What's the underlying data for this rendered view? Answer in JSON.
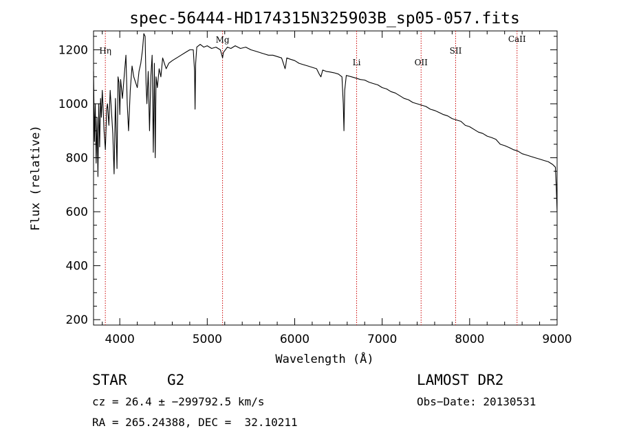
{
  "chart_data": {
    "type": "line",
    "title": "spec-56444-HD174315N325903B_sp05-057.fits",
    "xlabel": "Wavelength (Å)",
    "ylabel": "Flux (relative)",
    "xlim": [
      3700,
      9000
    ],
    "ylim": [
      180,
      1270
    ],
    "x_ticks": [
      4000,
      5000,
      6000,
      7000,
      8000,
      9000
    ],
    "y_ticks": [
      200,
      400,
      600,
      800,
      1000,
      1200
    ],
    "grid": false,
    "line_color": "#000000",
    "marker_color": "#cc0000",
    "spectral_lines": [
      {
        "label": "Hη",
        "x": 3835
      },
      {
        "label": "Mg",
        "x": 5175
      },
      {
        "label": "Li",
        "x": 6708
      },
      {
        "label": "OII",
        "x": 7445
      },
      {
        "label": "SII",
        "x": 7840
      },
      {
        "label": "CaII",
        "x": 8542
      }
    ],
    "series": [
      {
        "values": [
          [
            3700,
            1120
          ],
          [
            3710,
            860
          ],
          [
            3720,
            1000
          ],
          [
            3730,
            780
          ],
          [
            3740,
            950
          ],
          [
            3750,
            730
          ],
          [
            3760,
            1000
          ],
          [
            3770,
            840
          ],
          [
            3780,
            1020
          ],
          [
            3790,
            950
          ],
          [
            3800,
            1050
          ],
          [
            3810,
            980
          ],
          [
            3820,
            900
          ],
          [
            3835,
            830
          ],
          [
            3850,
            980
          ],
          [
            3860,
            1000
          ],
          [
            3875,
            920
          ],
          [
            3890,
            1050
          ],
          [
            3900,
            1000
          ],
          [
            3920,
            890
          ],
          [
            3935,
            740
          ],
          [
            3950,
            1020
          ],
          [
            3968,
            760
          ],
          [
            3980,
            1100
          ],
          [
            3990,
            1080
          ],
          [
            4000,
            960
          ],
          [
            4010,
            1090
          ],
          [
            4030,
            1020
          ],
          [
            4050,
            1100
          ],
          [
            4070,
            1180
          ],
          [
            4085,
            1000
          ],
          [
            4100,
            900
          ],
          [
            4120,
            1050
          ],
          [
            4140,
            1140
          ],
          [
            4160,
            1100
          ],
          [
            4180,
            1080
          ],
          [
            4200,
            1060
          ],
          [
            4220,
            1120
          ],
          [
            4240,
            1150
          ],
          [
            4260,
            1200
          ],
          [
            4275,
            1260
          ],
          [
            4290,
            1250
          ],
          [
            4300,
            1080
          ],
          [
            4310,
            1000
          ],
          [
            4325,
            1120
          ],
          [
            4340,
            900
          ],
          [
            4355,
            1100
          ],
          [
            4370,
            1180
          ],
          [
            4383,
            820
          ],
          [
            4395,
            1150
          ],
          [
            4405,
            800
          ],
          [
            4415,
            1100
          ],
          [
            4430,
            1060
          ],
          [
            4450,
            1130
          ],
          [
            4470,
            1100
          ],
          [
            4490,
            1170
          ],
          [
            4510,
            1150
          ],
          [
            4530,
            1130
          ],
          [
            4560,
            1150
          ],
          [
            4600,
            1160
          ],
          [
            4650,
            1170
          ],
          [
            4700,
            1180
          ],
          [
            4750,
            1190
          ],
          [
            4800,
            1200
          ],
          [
            4840,
            1200
          ],
          [
            4855,
            1120
          ],
          [
            4861,
            980
          ],
          [
            4868,
            1150
          ],
          [
            4880,
            1210
          ],
          [
            4920,
            1220
          ],
          [
            4960,
            1210
          ],
          [
            5000,
            1215
          ],
          [
            5050,
            1205
          ],
          [
            5100,
            1210
          ],
          [
            5150,
            1200
          ],
          [
            5167,
            1180
          ],
          [
            5175,
            1170
          ],
          [
            5185,
            1190
          ],
          [
            5230,
            1210
          ],
          [
            5270,
            1205
          ],
          [
            5320,
            1215
          ],
          [
            5380,
            1205
          ],
          [
            5440,
            1210
          ],
          [
            5500,
            1200
          ],
          [
            5550,
            1195
          ],
          [
            5600,
            1190
          ],
          [
            5650,
            1185
          ],
          [
            5700,
            1180
          ],
          [
            5750,
            1180
          ],
          [
            5800,
            1175
          ],
          [
            5850,
            1170
          ],
          [
            5870,
            1150
          ],
          [
            5890,
            1130
          ],
          [
            5896,
            1140
          ],
          [
            5910,
            1170
          ],
          [
            5950,
            1165
          ],
          [
            6000,
            1160
          ],
          [
            6050,
            1150
          ],
          [
            6100,
            1145
          ],
          [
            6150,
            1140
          ],
          [
            6200,
            1135
          ],
          [
            6250,
            1130
          ],
          [
            6280,
            1110
          ],
          [
            6300,
            1100
          ],
          [
            6320,
            1125
          ],
          [
            6360,
            1120
          ],
          [
            6400,
            1118
          ],
          [
            6450,
            1115
          ],
          [
            6500,
            1110
          ],
          [
            6540,
            1100
          ],
          [
            6555,
            1000
          ],
          [
            6563,
            900
          ],
          [
            6572,
            1050
          ],
          [
            6590,
            1105
          ],
          [
            6650,
            1100
          ],
          [
            6700,
            1095
          ],
          [
            6750,
            1090
          ],
          [
            6800,
            1088
          ],
          [
            6850,
            1080
          ],
          [
            6900,
            1075
          ],
          [
            6950,
            1070
          ],
          [
            7000,
            1060
          ],
          [
            7050,
            1055
          ],
          [
            7100,
            1045
          ],
          [
            7150,
            1040
          ],
          [
            7200,
            1030
          ],
          [
            7250,
            1020
          ],
          [
            7300,
            1015
          ],
          [
            7350,
            1005
          ],
          [
            7400,
            1000
          ],
          [
            7450,
            995
          ],
          [
            7500,
            990
          ],
          [
            7550,
            980
          ],
          [
            7600,
            975
          ],
          [
            7650,
            968
          ],
          [
            7700,
            960
          ],
          [
            7750,
            955
          ],
          [
            7800,
            945
          ],
          [
            7850,
            940
          ],
          [
            7900,
            935
          ],
          [
            7950,
            920
          ],
          [
            8000,
            915
          ],
          [
            8050,
            905
          ],
          [
            8100,
            895
          ],
          [
            8150,
            890
          ],
          [
            8200,
            880
          ],
          [
            8250,
            875
          ],
          [
            8300,
            868
          ],
          [
            8350,
            850
          ],
          [
            8400,
            845
          ],
          [
            8450,
            838
          ],
          [
            8500,
            830
          ],
          [
            8550,
            825
          ],
          [
            8600,
            815
          ],
          [
            8650,
            810
          ],
          [
            8700,
            805
          ],
          [
            8750,
            800
          ],
          [
            8800,
            795
          ],
          [
            8850,
            790
          ],
          [
            8900,
            785
          ],
          [
            8950,
            775
          ],
          [
            8980,
            765
          ],
          [
            8990,
            700
          ],
          [
            9000,
            600
          ]
        ]
      }
    ]
  },
  "info": {
    "object_class": "STAR",
    "subclass": "G2",
    "survey": "LAMOST DR2",
    "cz": "cz = 26.4 ± −299792.5 km/s",
    "obs_date": "Obs−Date: 20130531",
    "radec": "RA = 265.24388, DEC =  32.10211"
  }
}
